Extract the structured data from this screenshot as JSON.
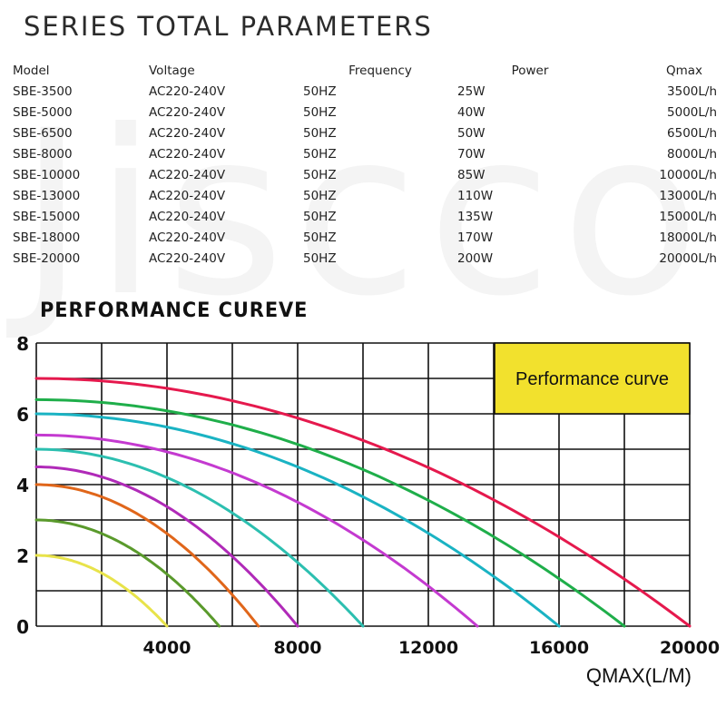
{
  "page_title": "SERIES TOTAL PARAMETERS",
  "watermark": "Jiscco",
  "params_table": {
    "headers": [
      "Model",
      "Voltage",
      "Frequency",
      "Power",
      "Qmax"
    ],
    "rows": [
      [
        "SBE-3500",
        "AC220-240V",
        "50HZ",
        "25W",
        "3500L/h"
      ],
      [
        "SBE-5000",
        "AC220-240V",
        "50HZ",
        "40W",
        "5000L/h"
      ],
      [
        "SBE-6500",
        "AC220-240V",
        "50HZ",
        "50W",
        "6500L/h"
      ],
      [
        "SBE-8000",
        "AC220-240V",
        "50HZ",
        "70W",
        "8000L/h"
      ],
      [
        "SBE-10000",
        "AC220-240V",
        "50HZ",
        "85W",
        "10000L/h"
      ],
      [
        "SBE-13000",
        "AC220-240V",
        "50HZ",
        "110W",
        "13000L/h"
      ],
      [
        "SBE-15000",
        "AC220-240V",
        "50HZ",
        "135W",
        "15000L/h"
      ],
      [
        "SBE-18000",
        "AC220-240V",
        "50HZ",
        "170W",
        "18000L/h"
      ],
      [
        "SBE-20000",
        "AC220-240V",
        "50HZ",
        "200W",
        "20000L/h"
      ]
    ]
  },
  "chart_title": "PERFORMANCE CUREVE",
  "chart_data": {
    "type": "line",
    "title": "PERFORMANCE CUREVE",
    "legend_box": "Performance curve",
    "legend_box_color": "#f2e12d",
    "xlabel": "QMAX(L/M)",
    "ylabel": "",
    "xlim": [
      0,
      20000
    ],
    "ylim": [
      0,
      8
    ],
    "x_ticks": [
      4000,
      8000,
      12000,
      16000,
      20000
    ],
    "y_ticks": [
      0,
      2,
      4,
      6,
      8
    ],
    "grid": true,
    "series": [
      {
        "color": "#e8e34a",
        "shutoff_head": 2.0,
        "qmax": 4000
      },
      {
        "color": "#5a9a2c",
        "shutoff_head": 3.0,
        "qmax": 5600
      },
      {
        "color": "#e0661a",
        "shutoff_head": 4.0,
        "qmax": 6800
      },
      {
        "color": "#b02ab8",
        "shutoff_head": 4.5,
        "qmax": 8000
      },
      {
        "color": "#2cbfb0",
        "shutoff_head": 5.0,
        "qmax": 10000
      },
      {
        "color": "#c43ad0",
        "shutoff_head": 5.4,
        "qmax": 13500
      },
      {
        "color": "#1ab3c3",
        "shutoff_head": 6.0,
        "qmax": 16000
      },
      {
        "color": "#1fae4a",
        "shutoff_head": 6.4,
        "qmax": 18000
      },
      {
        "color": "#e5194d",
        "shutoff_head": 7.0,
        "qmax": 20000
      }
    ]
  }
}
